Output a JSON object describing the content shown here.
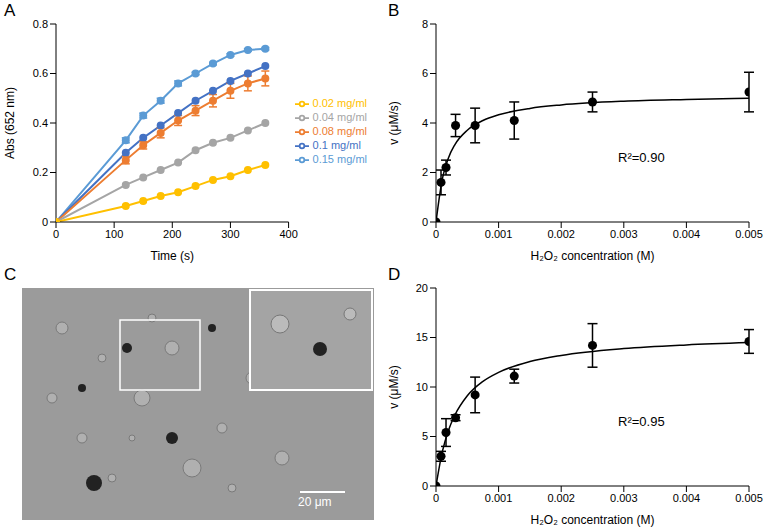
{
  "chart_data": [
    {
      "panel": "A",
      "type": "line",
      "x_label": "Time (s)",
      "y_label": "Abs (652 nm)",
      "x": [
        0,
        120,
        150,
        180,
        210,
        240,
        270,
        300,
        330,
        360
      ],
      "series": [
        {
          "name": "0.15 mg/ml",
          "color": "#5b9bd5",
          "marker": "circle",
          "values": [
            0,
            0.33,
            0.43,
            0.49,
            0.56,
            0.6,
            0.64,
            0.675,
            0.695,
            0.7
          ],
          "errors": [
            0,
            0.01,
            0.01,
            0.01,
            0.01,
            0.005,
            0.005,
            0.005,
            0.005,
            0.005
          ]
        },
        {
          "name": "0.1 mg/ml",
          "color": "#4472c4",
          "marker": "circle",
          "values": [
            0,
            0.28,
            0.34,
            0.39,
            0.44,
            0.49,
            0.53,
            0.57,
            0.6,
            0.63
          ]
        },
        {
          "name": "0.08 mg/ml",
          "color": "#ed7d31",
          "marker": "circle",
          "values": [
            0,
            0.25,
            0.31,
            0.36,
            0.41,
            0.45,
            0.49,
            0.53,
            0.56,
            0.58
          ],
          "errors": [
            0,
            0.015,
            0.015,
            0.02,
            0.02,
            0.02,
            0.025,
            0.03,
            0.03,
            0.03
          ]
        },
        {
          "name": "0.04 mg/ml",
          "color": "#a5a5a5",
          "marker": "circle",
          "values": [
            0,
            0.15,
            0.18,
            0.21,
            0.24,
            0.29,
            0.32,
            0.34,
            0.37,
            0.4
          ]
        },
        {
          "name": "0.02 mg/ml",
          "color": "#ffc000",
          "marker": "circle",
          "values": [
            0,
            0.065,
            0.085,
            0.105,
            0.12,
            0.145,
            0.17,
            0.185,
            0.21,
            0.23
          ]
        }
      ],
      "xlim": [
        0,
        400
      ],
      "xticks": [
        0,
        100,
        200,
        300,
        400
      ],
      "ylim": [
        0,
        0.8
      ],
      "yticks": [
        0,
        0.2,
        0.4,
        0.6,
        0.8
      ],
      "legend": "right",
      "grid": false
    },
    {
      "panel": "B",
      "type": "scatter",
      "x_label": "H₂O₂ concentration (M)",
      "y_label": "v (μM/s)",
      "annotation": "R²=0.90",
      "x": [
        0,
        8e-05,
        0.00016,
        0.0003125,
        0.000625,
        0.00125,
        0.0025,
        0.005
      ],
      "values": [
        0,
        1.6,
        2.2,
        3.9,
        3.9,
        4.1,
        4.85,
        5.25
      ],
      "errors": [
        0,
        0.5,
        0.3,
        0.45,
        0.7,
        0.75,
        0.4,
        0.8
      ],
      "color": "#000000",
      "fit": {
        "x": [
          0,
          0.0001,
          0.0002,
          0.0003,
          0.0005,
          0.00075,
          0.001,
          0.0015,
          0.002,
          0.003,
          0.004,
          0.005
        ],
        "values": [
          0,
          1.73,
          2.6,
          3.12,
          3.71,
          4.1,
          4.33,
          4.59,
          4.73,
          4.88,
          4.95,
          5.0
        ]
      },
      "xlim": [
        0,
        0.005
      ],
      "xticks": [
        0,
        0.001,
        0.002,
        0.003,
        0.004,
        0.005
      ],
      "ylim": [
        0,
        8
      ],
      "yticks": [
        0,
        2,
        4,
        6,
        8
      ],
      "grid": false
    },
    {
      "panel": "C",
      "type": "image",
      "scale_bar": "20 μm"
    },
    {
      "panel": "D",
      "type": "scatter",
      "x_label": "H₂O₂ concentration (M)",
      "y_label": "v (μM/s)",
      "annotation": "R²=0.95",
      "x": [
        0,
        8e-05,
        0.00016,
        0.0003125,
        0.000625,
        0.00125,
        0.0025,
        0.005
      ],
      "values": [
        0,
        3.0,
        5.4,
        6.9,
        9.2,
        11.1,
        14.2,
        14.6
      ],
      "errors": [
        0,
        0.5,
        1.4,
        0.3,
        1.8,
        0.7,
        2.2,
        1.2
      ],
      "color": "#000000",
      "fit": {
        "x": [
          0,
          0.0001,
          0.0002,
          0.0003,
          0.0005,
          0.00075,
          0.001,
          0.0015,
          0.002,
          0.003,
          0.004,
          0.005
        ],
        "values": [
          0,
          3.44,
          5.64,
          7.15,
          9.12,
          10.57,
          11.48,
          12.57,
          13.19,
          13.88,
          14.25,
          14.49
        ]
      },
      "xlim": [
        0,
        0.005
      ],
      "xticks": [
        0,
        0.001,
        0.002,
        0.003,
        0.004,
        0.005
      ],
      "ylim": [
        0,
        20
      ],
      "yticks": [
        0,
        5,
        10,
        15,
        20
      ],
      "grid": false
    }
  ]
}
